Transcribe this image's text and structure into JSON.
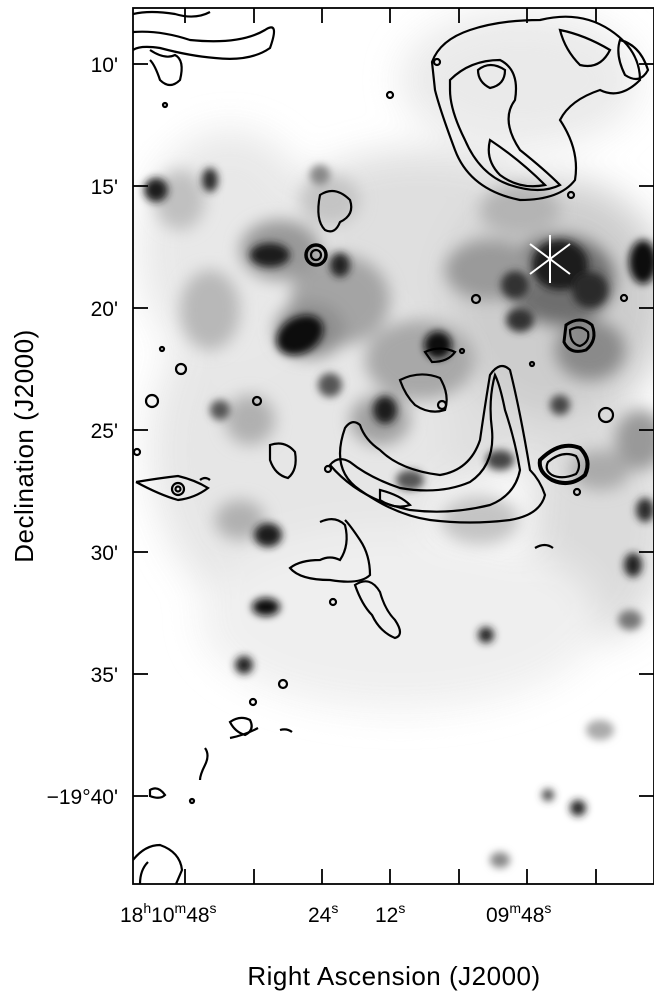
{
  "figure": {
    "x_axis_title": "Right Ascension (J2000)",
    "y_axis_title": "Declination (J2000)",
    "y_ticks": [
      {
        "label": "10'"
      },
      {
        "label": "15'"
      },
      {
        "label": "20'"
      },
      {
        "label": "25'"
      },
      {
        "label": "30'"
      },
      {
        "label": "35'"
      },
      {
        "label": "−19°40'"
      }
    ],
    "x_ticks": [
      {
        "label": "18h10m48s"
      },
      {
        "label": "24s"
      },
      {
        "label": "12s"
      },
      {
        "label": "09m48s"
      }
    ],
    "image_type": "grayscale map with black contours",
    "marker": "white star (asterisk) marker",
    "colors": {
      "background": "#ffffff",
      "contour": "#000000",
      "axis": "#000000"
    }
  }
}
